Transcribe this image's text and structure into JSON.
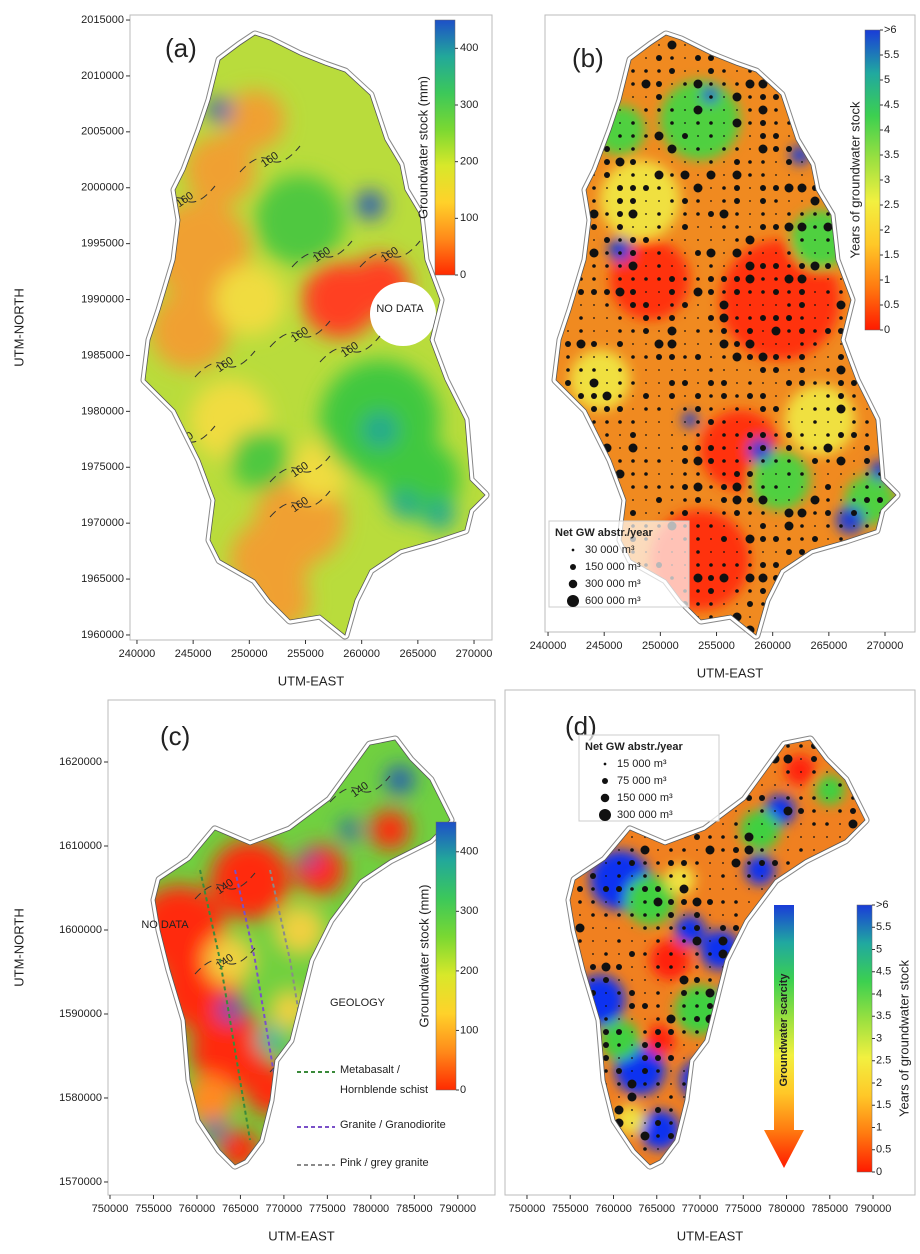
{
  "chart_data": [
    {
      "type": "map",
      "label": "(a)",
      "xlabel": "UTM-EAST",
      "ylabel": "UTM-NORTH",
      "xlim": [
        239380,
        271600
      ],
      "ylim": [
        1959550,
        2015450
      ],
      "xticks": [
        240000,
        245000,
        250000,
        255000,
        260000,
        265000,
        270000
      ],
      "yticks": [
        1960000,
        1965000,
        1970000,
        1975000,
        1980000,
        1985000,
        1990000,
        1995000,
        2000000,
        2005000,
        2010000,
        2015000
      ],
      "colorbar": {
        "label": "Groundwater stock (mm)",
        "lim": [
          0,
          450
        ],
        "ticks": [
          0,
          100,
          200,
          300,
          400
        ],
        "colors": [
          "#ff2a00",
          "#ff8a1a",
          "#ffd22a",
          "#d8e82a",
          "#7ad832",
          "#3cc85a",
          "#22a89a",
          "#1e50c8"
        ]
      },
      "annotation": "NO DATA",
      "contour_label": "160"
    },
    {
      "type": "map",
      "label": "(b)",
      "xlabel": "UTM-EAST",
      "xlim": [
        239730,
        272670
      ],
      "xticks": [
        240000,
        245000,
        250000,
        255000,
        260000,
        265000,
        270000
      ],
      "colorbar": {
        "label": "Years of groundwater stock",
        "lim": [
          0,
          6
        ],
        "ticks": [
          0,
          0.5,
          1,
          1.5,
          2,
          2.5,
          3,
          3.5,
          4,
          4.5,
          5,
          5.5,
          {
            "value": 6,
            "label": ">6"
          }
        ],
        "colors": [
          "#ff1a00",
          "#ff7a10",
          "#ffc828",
          "#f2f040",
          "#9ae040",
          "#3cd050",
          "#20a8a0",
          "#1a3cd8"
        ]
      },
      "size_legend": {
        "title": "Net GW abstr./year",
        "entries": [
          {
            "value": 30000,
            "label": "30 000 m³"
          },
          {
            "value": 150000,
            "label": "150 000 m³"
          },
          {
            "value": 300000,
            "label": "300 000 m³"
          },
          {
            "value": 600000,
            "label": "600 000 m³"
          }
        ]
      }
    },
    {
      "type": "map",
      "label": "(c)",
      "xlabel": "UTM-EAST",
      "ylabel": "UTM-NORTH",
      "xlim": [
        749770,
        794280
      ],
      "ylim": [
        1568450,
        1627380
      ],
      "xticks": [
        750000,
        755000,
        760000,
        765000,
        770000,
        775000,
        780000,
        785000,
        790000
      ],
      "yticks": [
        1570000,
        1580000,
        1590000,
        1600000,
        1610000,
        1620000
      ],
      "colorbar": {
        "label": "Groundwater stock (mm)",
        "lim": [
          0,
          450
        ],
        "ticks": [
          0,
          100,
          200,
          300,
          400
        ],
        "colors": [
          "#ff2a00",
          "#ff8a1a",
          "#ffd22a",
          "#d8e82a",
          "#7ad832",
          "#3cc85a",
          "#22a89a",
          "#1e50c8"
        ]
      },
      "annotation": "NO DATA",
      "contour_label": "140",
      "geology": {
        "title": "GEOLOGY",
        "entries": [
          {
            "label": [
              "Metabasalt /",
              "Hornblende schist"
            ],
            "color": "#3a8a3a"
          },
          {
            "label": [
              "Granite / Granodiorite"
            ],
            "color": "#7a50c8"
          },
          {
            "label": [
              "Pink / grey granite"
            ],
            "color": "#8a8a8a"
          }
        ]
      }
    },
    {
      "type": "map",
      "label": "(d)",
      "xlabel": "UTM-EAST",
      "xlim": [
        747460,
        794850
      ],
      "xticks": [
        750000,
        755000,
        760000,
        765000,
        770000,
        775000,
        780000,
        785000,
        790000
      ],
      "colorbar": {
        "label": "Years of groundwater stock",
        "lim": [
          0,
          6
        ],
        "ticks": [
          0,
          0.5,
          1,
          1.5,
          2,
          2.5,
          3,
          3.5,
          4,
          4.5,
          5,
          5.5,
          {
            "value": 6,
            "label": ">6"
          }
        ],
        "colors": [
          "#ff1a00",
          "#ff7a10",
          "#ffc828",
          "#f2f040",
          "#9ae040",
          "#3cd050",
          "#20a8a0",
          "#1a3cd8"
        ]
      },
      "size_legend": {
        "title": "Net GW abstr./year",
        "entries": [
          {
            "value": 15000,
            "label": "15 000 m³"
          },
          {
            "value": 75000,
            "label": "75 000 m³"
          },
          {
            "value": 150000,
            "label": "150 000 m³"
          },
          {
            "value": 300000,
            "label": "300 000 m³"
          }
        ]
      },
      "arrow_label": "Groundwater scarcity"
    }
  ]
}
